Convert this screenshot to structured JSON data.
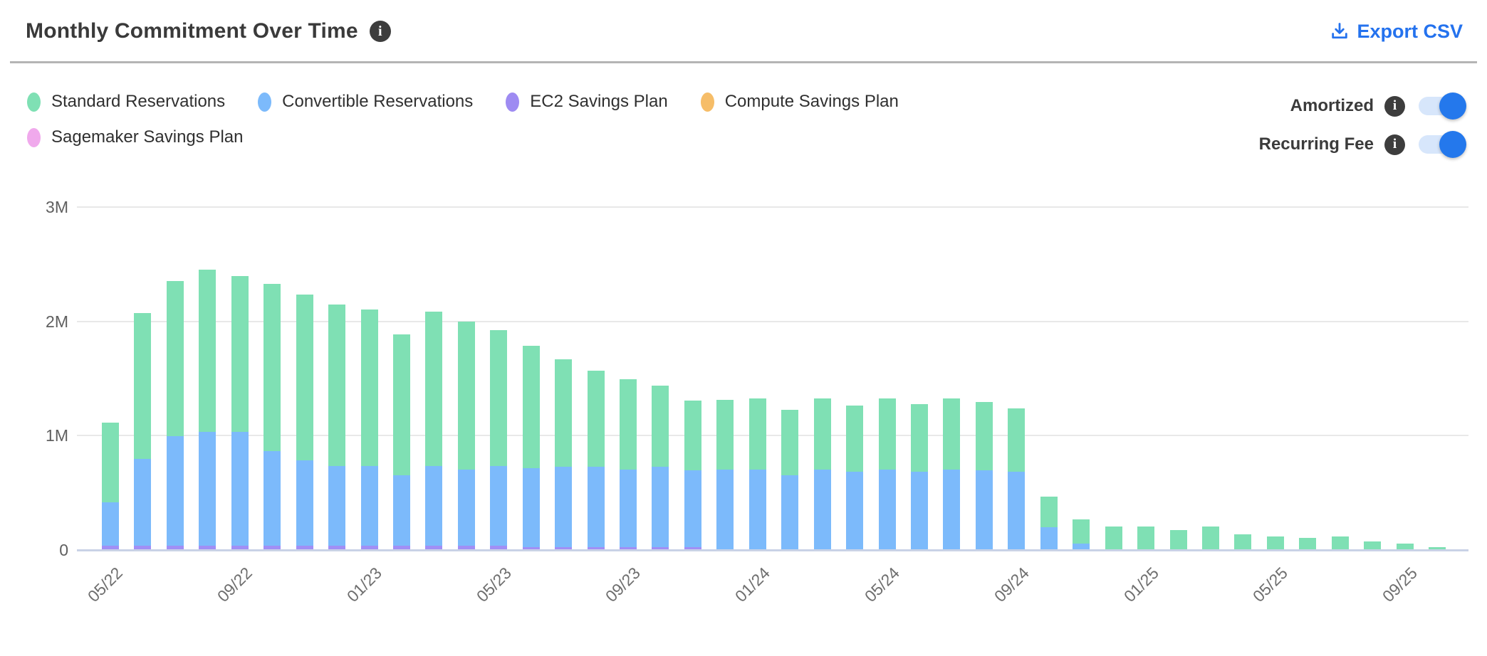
{
  "header": {
    "title": "Monthly Commitment Over Time",
    "info_icon": "i",
    "export_label": "Export CSV"
  },
  "colors": {
    "accent_blue": "#2472ee",
    "toggle_track": "#d7e6fb",
    "info_icon_bg": "#3d3d3d",
    "gridline": "#e8e8e8",
    "axis_line": "#c9d2e6"
  },
  "legend": {
    "items": [
      {
        "label": "Standard Reservations",
        "color": "#7fe0b4"
      },
      {
        "label": "Convertible Reservations",
        "color": "#7cbafb"
      },
      {
        "label": "EC2 Savings Plan",
        "color": "#9e8bf2"
      },
      {
        "label": "Compute Savings Plan",
        "color": "#f6bd68"
      },
      {
        "label": "Sagemaker Savings Plan",
        "color": "#f0a9ec"
      }
    ]
  },
  "toggles": [
    {
      "label": "Amortized",
      "state": "on"
    },
    {
      "label": "Recurring Fee",
      "state": "on"
    }
  ],
  "chart_data": {
    "type": "bar",
    "stacked": true,
    "title": "Monthly Commitment Over Time",
    "unit": "M (millions)",
    "grid": true,
    "legend_position": "top-left",
    "ylim": [
      0,
      3
    ],
    "yticks": [
      "0",
      "1M",
      "2M",
      "3M"
    ],
    "xtick_every": 4,
    "xtick_labels_shown": [
      "05/22",
      "09/22",
      "01/23",
      "05/23",
      "09/23",
      "01/24",
      "05/24",
      "09/24",
      "01/25",
      "05/25",
      "09/25"
    ],
    "categories": [
      "05/22",
      "06/22",
      "07/22",
      "08/22",
      "09/22",
      "10/22",
      "11/22",
      "12/22",
      "01/23",
      "02/23",
      "03/23",
      "04/23",
      "05/23",
      "06/23",
      "07/23",
      "08/23",
      "09/23",
      "10/23",
      "11/23",
      "12/23",
      "01/24",
      "02/24",
      "03/24",
      "04/24",
      "05/24",
      "06/24",
      "07/24",
      "08/24",
      "09/24",
      "10/24",
      "11/24",
      "12/24",
      "01/25",
      "02/25",
      "03/25",
      "04/25",
      "05/25",
      "06/25",
      "07/25",
      "08/25",
      "09/25",
      "10/25"
    ],
    "series": [
      {
        "name": "EC2 Savings Plan",
        "color": "#a18ff5",
        "values": [
          0.03,
          0.03,
          0.03,
          0.03,
          0.03,
          0.03,
          0.03,
          0.03,
          0.03,
          0.03,
          0.03,
          0.03,
          0.03,
          0.02,
          0.02,
          0.02,
          0.02,
          0.02,
          0.02,
          0,
          0,
          0,
          0,
          0,
          0,
          0,
          0,
          0,
          0,
          0,
          0,
          0,
          0,
          0,
          0,
          0,
          0,
          0,
          0,
          0,
          0,
          0
        ]
      },
      {
        "name": "Convertible Reservations",
        "color": "#7cbafb",
        "values": [
          0.38,
          0.76,
          0.96,
          1.0,
          1.0,
          0.83,
          0.75,
          0.7,
          0.7,
          0.62,
          0.7,
          0.67,
          0.7,
          0.69,
          0.7,
          0.7,
          0.68,
          0.7,
          0.67,
          0.7,
          0.7,
          0.65,
          0.7,
          0.68,
          0.7,
          0.68,
          0.7,
          0.69,
          0.68,
          0.19,
          0.05,
          0,
          0,
          0,
          0,
          0,
          0,
          0,
          0,
          0,
          0,
          0
        ]
      },
      {
        "name": "Standard Reservations",
        "color": "#7fe0b4",
        "values": [
          0.7,
          1.28,
          1.36,
          1.42,
          1.36,
          1.46,
          1.45,
          1.41,
          1.37,
          1.23,
          1.35,
          1.29,
          1.19,
          1.07,
          0.94,
          0.84,
          0.79,
          0.71,
          0.61,
          0.61,
          0.62,
          0.57,
          0.62,
          0.58,
          0.62,
          0.59,
          0.62,
          0.6,
          0.55,
          0.27,
          0.21,
          0.2,
          0.2,
          0.17,
          0.2,
          0.13,
          0.11,
          0.1,
          0.11,
          0.07,
          0.05,
          0.02
        ]
      },
      {
        "name": "Compute Savings Plan",
        "color": "#f6bd68",
        "values": [
          0,
          0,
          0,
          0,
          0,
          0,
          0,
          0,
          0,
          0,
          0,
          0,
          0,
          0,
          0,
          0,
          0,
          0,
          0,
          0,
          0,
          0,
          0,
          0,
          0,
          0,
          0,
          0,
          0,
          0,
          0,
          0,
          0,
          0,
          0,
          0,
          0,
          0,
          0,
          0,
          0,
          0
        ]
      },
      {
        "name": "Sagemaker Savings Plan",
        "color": "#f0a9ec",
        "values": [
          0,
          0,
          0,
          0,
          0,
          0,
          0,
          0,
          0,
          0,
          0,
          0,
          0,
          0,
          0,
          0,
          0,
          0,
          0,
          0,
          0,
          0,
          0,
          0,
          0,
          0,
          0,
          0,
          0,
          0,
          0,
          0,
          0,
          0,
          0,
          0,
          0,
          0,
          0,
          0,
          0,
          0
        ]
      }
    ]
  }
}
